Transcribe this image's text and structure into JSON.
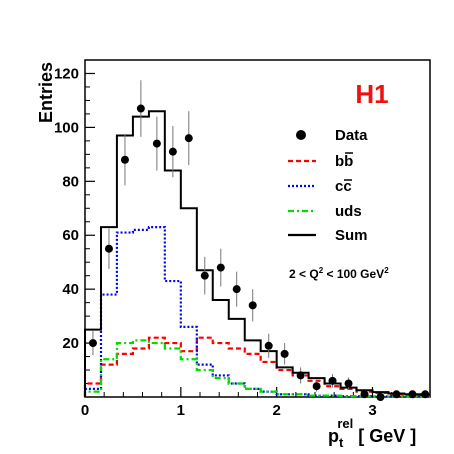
{
  "chart_data": {
    "type": "histogram",
    "ylabel": "Entries",
    "xlabel_main": "p",
    "xlabel_sub": "t",
    "xlabel_sup": "rel",
    "xlabel_unit": "[ GeV ]",
    "experiment_label": "H1",
    "experiment_color": "#ee1111",
    "xlim": [
      0,
      3.6
    ],
    "ylim": [
      0,
      125
    ],
    "x_ticks": [
      0,
      1,
      2,
      3
    ],
    "y_ticks": [
      20,
      40,
      60,
      80,
      100,
      120
    ],
    "bin_edges": [
      0,
      0.167,
      0.333,
      0.5,
      0.667,
      0.833,
      1.0,
      1.167,
      1.333,
      1.5,
      1.667,
      1.833,
      2.0,
      2.167,
      2.333,
      2.5,
      2.667,
      2.833,
      3.0,
      3.167,
      3.333,
      3.5,
      3.6
    ],
    "series": [
      {
        "name": "bb",
        "style": "dashed",
        "color": "#ff0000",
        "values": [
          5,
          12,
          16,
          18,
          22,
          20,
          17,
          22,
          20,
          18,
          16,
          13,
          10,
          8,
          6,
          4,
          3,
          2,
          1.5,
          1,
          0.8,
          0.6
        ]
      },
      {
        "name": "cc",
        "style": "dotted",
        "color": "#0000ff",
        "values": [
          3,
          38,
          61,
          62,
          63,
          43,
          26,
          12,
          8,
          5,
          3,
          2,
          1,
          1,
          0.5,
          0.5,
          0.3,
          0.3,
          0.2,
          0.2,
          0.2,
          0.2
        ]
      },
      {
        "name": "uds",
        "style": "dashdot",
        "color": "#00dd00",
        "values": [
          2,
          14,
          20,
          21,
          20,
          18,
          14,
          10,
          7,
          5,
          3,
          2,
          1,
          1,
          0.5,
          0.5,
          0.3,
          0.3,
          0.2,
          0.2,
          0.2,
          0.2
        ]
      },
      {
        "name": "Sum",
        "style": "solid",
        "color": "#000000",
        "values": [
          25,
          63,
          97,
          104,
          106,
          84,
          70,
          47,
          36,
          29,
          21,
          17,
          11,
          9,
          7,
          5,
          3.5,
          2.5,
          1.8,
          1.3,
          1.0,
          0.8
        ]
      }
    ],
    "data_points": {
      "name": "Data",
      "x": [
        0.083,
        0.25,
        0.417,
        0.583,
        0.75,
        0.917,
        1.083,
        1.25,
        1.417,
        1.583,
        1.75,
        1.917,
        2.083,
        2.25,
        2.417,
        2.583,
        2.75,
        2.917,
        3.083,
        3.25,
        3.417,
        3.55
      ],
      "y": [
        20,
        55,
        88,
        107,
        94,
        91,
        96,
        45,
        48,
        40,
        34,
        19,
        16,
        8,
        4,
        6,
        5,
        1,
        0,
        1,
        1,
        1
      ],
      "err": [
        4.5,
        7.5,
        9.5,
        10.5,
        10,
        9.5,
        10,
        7,
        7,
        6.5,
        6,
        4.5,
        4,
        3,
        2,
        2.5,
        2.2,
        1,
        0,
        1,
        1,
        1
      ]
    },
    "legend": [
      {
        "label": "Data",
        "marker": "dot"
      },
      {
        "label": "bb",
        "marker": "dashed-red"
      },
      {
        "label": "cc",
        "marker": "dotted-blue"
      },
      {
        "label": "uds",
        "marker": "dashdot-green"
      },
      {
        "label": "Sum",
        "marker": "solid-black"
      }
    ],
    "legend_placement": "right",
    "annotation_text": "2 < Q",
    "annotation_sup1": "2",
    "annotation_text2": " < 100 GeV",
    "annotation_sup2": "2"
  }
}
